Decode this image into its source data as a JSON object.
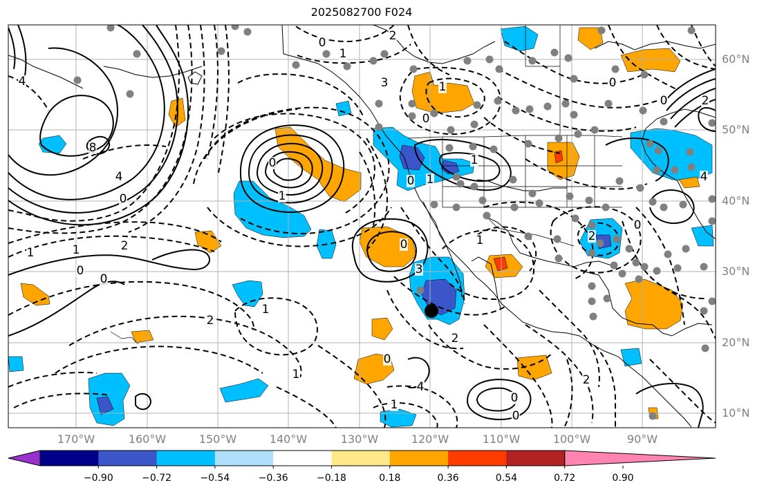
{
  "title": "2025082700 F024",
  "lat_labels": [
    "60°N",
    "50°N",
    "40°N",
    "30°N",
    "20°N",
    "10°N"
  ],
  "lon_labels": [
    "170°W",
    "160°W",
    "150°W",
    "140°W",
    "130°W",
    "120°W",
    "110°W",
    "100°W",
    "90°W"
  ],
  "colorbar": {
    "ticks": [
      "−0.90",
      "−0.72",
      "−0.54",
      "−0.36",
      "−0.18",
      "0.18",
      "0.36",
      "0.54",
      "0.72",
      "0.90"
    ],
    "colors": [
      "#9932cc",
      "#00008b",
      "#3a56c8",
      "#00bfff",
      "#aee0fb",
      "#ffffff",
      "#fde98a",
      "#ffa500",
      "#ff3c00",
      "#b22222",
      "#ff85b0"
    ]
  },
  "contour_labels": [
    "0",
    "1",
    "3",
    "4",
    "8",
    "4",
    "0",
    "2",
    "1",
    "0",
    "2",
    "1",
    "0",
    "1",
    "2",
    "1",
    "0",
    "3",
    "0",
    "4",
    "1",
    "0",
    "0",
    "1",
    "2",
    "2",
    "1",
    "0",
    "0",
    "4",
    "0",
    "2",
    "1",
    "0",
    "0",
    "1",
    "1",
    "0",
    "2"
  ],
  "colors": {
    "land_line": "#000000",
    "grid": "#b0b0b0",
    "marker": "#808080",
    "storm_marker": "#000000",
    "neg_light": "#00bfff",
    "neg_dark": "#3a56c8",
    "pos": "#ffa500",
    "pos_strong": "#ff3c00"
  }
}
